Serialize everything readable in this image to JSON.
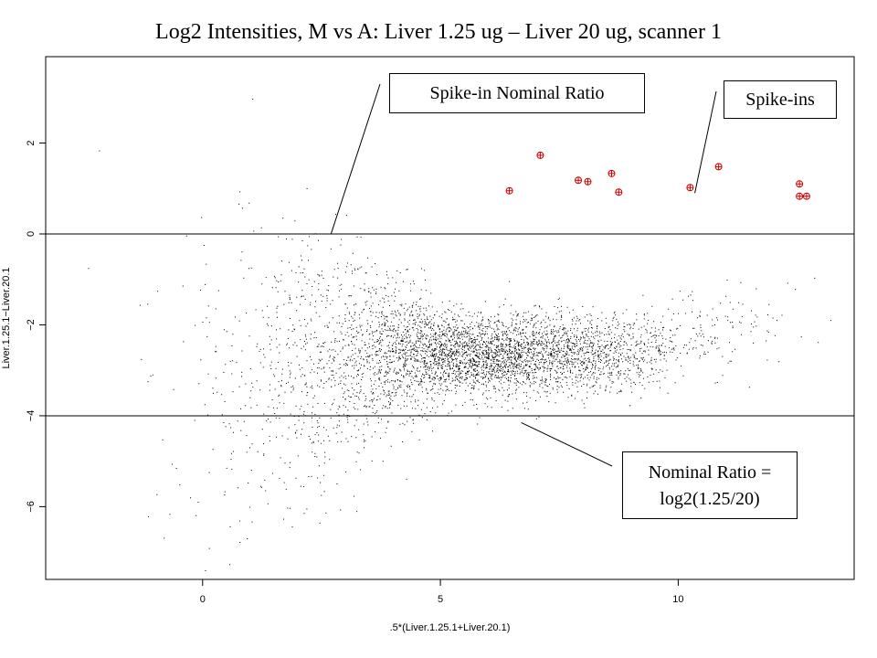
{
  "chart_data": {
    "type": "scatter",
    "title": "Log2 Intensities, M vs A: Liver 1.25 ug – Liver 20 ug, scanner 1",
    "xlabel": ".5*(Liver.1.25.1+Liver.20.1)",
    "ylabel": "Liver.1.25.1−Liver.20.1",
    "xlim": [
      -3.3,
      13.7
    ],
    "ylim": [
      -7.6,
      3.9
    ],
    "x_ticks": [
      {
        "value": 0,
        "label": "0"
      },
      {
        "value": 5,
        "label": "5"
      },
      {
        "value": 10,
        "label": "10"
      }
    ],
    "y_ticks": [
      {
        "value": -6,
        "label": "−6"
      },
      {
        "value": -4,
        "label": "−4"
      },
      {
        "value": -2,
        "label": "−2"
      },
      {
        "value": 0,
        "label": "0"
      },
      {
        "value": 2,
        "label": "2"
      }
    ],
    "reference_lines": [
      {
        "y": 0
      },
      {
        "y": -4
      }
    ],
    "series": [
      {
        "name": "Spike-ins",
        "marker": "circle-plus",
        "color": "#cc0000",
        "points": [
          {
            "x": 6.45,
            "y": 0.95
          },
          {
            "x": 7.1,
            "y": 1.73
          },
          {
            "x": 7.9,
            "y": 1.18
          },
          {
            "x": 8.1,
            "y": 1.15
          },
          {
            "x": 8.6,
            "y": 1.33
          },
          {
            "x": 8.75,
            "y": 0.92
          },
          {
            "x": 10.25,
            "y": 1.02
          },
          {
            "x": 10.85,
            "y": 1.48
          },
          {
            "x": 12.55,
            "y": 1.1
          },
          {
            "x": 12.55,
            "y": 0.83
          },
          {
            "x": 12.7,
            "y": 0.83
          }
        ]
      }
    ],
    "background_cloud": {
      "color": "#000000",
      "description_shown": "dense point cloud of all genes",
      "center_x": 5.6,
      "center_y": -2.6
    },
    "annotations": [
      {
        "text": "Spike-in Nominal Ratio",
        "points_to": {
          "x": 2.7,
          "y": 0
        }
      },
      {
        "text": "Spike-ins",
        "points_to": {
          "x": 10.35,
          "y": 0.9
        }
      },
      {
        "text_lines": [
          "Nominal Ratio =",
          "log2(1.25/20)"
        ],
        "points_to": {
          "x": 6.7,
          "y": -4.15
        }
      }
    ],
    "grid": false
  }
}
